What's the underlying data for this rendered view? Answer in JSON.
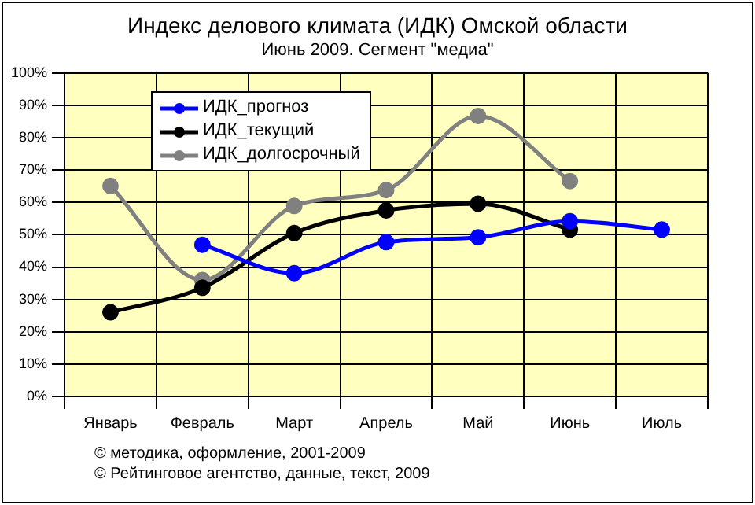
{
  "chart_data": {
    "type": "line",
    "title": "Индекс делового климата (ИДК) Омской области",
    "subtitle": "Июнь 2009. Сегмент \"медиа\"",
    "categories": [
      "Январь",
      "Февраль",
      "Март",
      "Апрель",
      "Май",
      "Июнь",
      "Июль"
    ],
    "series": [
      {
        "name": "ИДК_прогноз",
        "color": "#0000ff",
        "values": [
          null,
          46.9,
          38.1,
          47.7,
          49.2,
          54.2,
          51.6
        ]
      },
      {
        "name": "ИДК_текущий",
        "color": "#000000",
        "values": [
          26.0,
          33.6,
          50.5,
          57.5,
          59.6,
          51.6,
          null
        ]
      },
      {
        "name": "ИДК_долгосрочный",
        "color": "#808080",
        "values": [
          65.1,
          36.0,
          58.9,
          63.8,
          86.7,
          66.6,
          null
        ]
      }
    ],
    "ylim": [
      0,
      100
    ],
    "yticks": [
      {
        "value": 0,
        "label": "0%"
      },
      {
        "value": 10,
        "label": "10%"
      },
      {
        "value": 20,
        "label": "20%"
      },
      {
        "value": 30,
        "label": "30%"
      },
      {
        "value": 40,
        "label": "40%"
      },
      {
        "value": 50,
        "label": "50%"
      },
      {
        "value": 60,
        "label": "60%"
      },
      {
        "value": 70,
        "label": "70%"
      },
      {
        "value": 80,
        "label": "80%"
      },
      {
        "value": 90,
        "label": "90%"
      },
      {
        "value": 100,
        "label": "100%"
      }
    ],
    "grid": true,
    "legend": "top left",
    "marker": "circle",
    "line_style": "solid",
    "annotations": [
      "© методика, оформление, 2001-2009",
      "© Рейтинговое агентство, данные, текст, 2009"
    ]
  }
}
